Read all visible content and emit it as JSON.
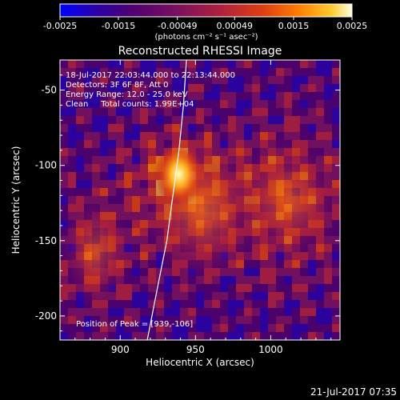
{
  "chart_data": {
    "type": "heatmap",
    "title": "Reconstructed RHESSI Image",
    "xlabel": "Heliocentric X (arcsec)",
    "ylabel": "Heliocentric Y (arcsec)",
    "xlim": [
      860,
      1046
    ],
    "ylim": [
      -216,
      -30
    ],
    "x_ticks": [
      900,
      950,
      1000
    ],
    "y_ticks": [
      -200,
      -150,
      -100,
      -50
    ],
    "colorbar": {
      "ticks": [
        "-0.0025",
        "-0.0015",
        "-0.00049",
        "0.00049",
        "0.0015",
        "0.0025"
      ],
      "tick_values": [
        -0.0025,
        -0.0015,
        -0.00049,
        0.00049,
        0.0015,
        0.0025
      ],
      "range": [
        -0.0025,
        0.0025
      ],
      "units": "(photons cm⁻² s⁻¹ asec⁻²)",
      "colors": [
        "#0000ff",
        "#2a00aa",
        "#500070",
        "#7a1060",
        "#b0203c",
        "#e04010",
        "#ff8000",
        "#ffcc30",
        "#ffffe0"
      ]
    },
    "annotations": [
      "18-Jul-2017 22:03:44.000 to 22:13:44.000",
      "Detectors: 3F 6F 8F, Att 0",
      "Energy Range: 12.0 - 25.0 keV",
      "Clean     Total counts: 1.99E+04",
      "Position of Peak = [939,-106]"
    ],
    "peak": {
      "x": 939,
      "y": -106
    },
    "limb_curve": [
      [
        918,
        -216
      ],
      [
        925,
        -180
      ],
      [
        931,
        -150
      ],
      [
        935,
        -120
      ],
      [
        939,
        -90
      ],
      [
        942,
        -60
      ],
      [
        944,
        -30
      ]
    ]
  },
  "footer": {
    "timestamp": "21-Jul-2017 07:35"
  }
}
